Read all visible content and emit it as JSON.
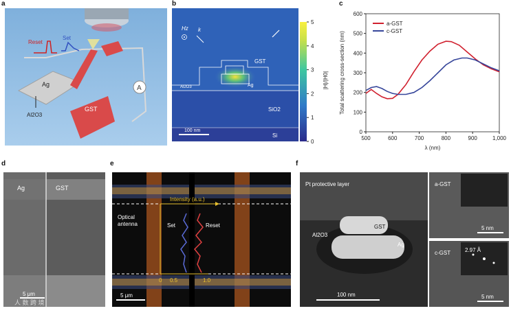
{
  "panels": {
    "a": "a",
    "b": "b",
    "c": "c",
    "d": "d",
    "e": "e",
    "f": "f"
  },
  "panel_a": {
    "reset": "Reset",
    "set": "Set",
    "ag": "Ag",
    "gst": "GST",
    "al2o3": "Al2O3",
    "meter": "A"
  },
  "panel_b": {
    "hz": "Hz",
    "k": "k",
    "gst": "GST",
    "ag": "Ag",
    "al2o3": "Al2O3",
    "sio2": "SiO2",
    "si": "Si",
    "scale": "100 nm",
    "colorbar_label": "|H|/|H0|",
    "colorbar_ticks": [
      "0",
      "1",
      "2",
      "3",
      "4",
      "5"
    ]
  },
  "panel_d": {
    "ag": "Ag",
    "gst": "GST",
    "scale": "5 μm",
    "watermark": "人 数 跨 境"
  },
  "panel_e": {
    "intensity": "Intensity (a.u.)",
    "optical": "Optical",
    "antenna": "antenna",
    "set": "Set",
    "reset": "Reset",
    "tick0": "0",
    "tick05": "0.5",
    "tick1": "1.0",
    "scale": "5 μm"
  },
  "panel_f": {
    "pt": "Pt protective layer",
    "gst": "GST",
    "al2o3": "Al2O3",
    "ag": "Ag",
    "scale": "100 nm",
    "agst": "a-GST",
    "cgst": "c-GST",
    "d": "2.97 Å",
    "scale_small1": "5 nm",
    "scale_small2": "5 nm"
  },
  "chart_data": {
    "type": "line",
    "title": "",
    "xlabel": "λ (nm)",
    "ylabel": "Total scattering cross-section (nm)",
    "xlim": [
      500,
      1000
    ],
    "ylim": [
      0,
      600
    ],
    "xticks": [
      "500",
      "600",
      "700",
      "800",
      "900",
      "1,000"
    ],
    "yticks": [
      "0",
      "100",
      "200",
      "300",
      "400",
      "500",
      "600"
    ],
    "series": [
      {
        "name": "a-GST",
        "color": "#d0202e",
        "x": [
          500,
          520,
          540,
          560,
          580,
          600,
          620,
          650,
          680,
          710,
          740,
          770,
          800,
          820,
          850,
          880,
          910,
          940,
          970,
          1000
        ],
        "y": [
          195,
          215,
          195,
          178,
          168,
          170,
          190,
          240,
          305,
          365,
          410,
          445,
          460,
          458,
          440,
          405,
          370,
          340,
          320,
          305
        ]
      },
      {
        "name": "c-GST",
        "color": "#35459a",
        "x": [
          500,
          520,
          540,
          560,
          580,
          600,
          620,
          650,
          680,
          710,
          740,
          770,
          800,
          830,
          860,
          880,
          910,
          940,
          970,
          1000
        ],
        "y": [
          210,
          225,
          230,
          220,
          205,
          195,
          190,
          190,
          200,
          225,
          260,
          300,
          340,
          365,
          375,
          375,
          365,
          345,
          325,
          310
        ]
      }
    ]
  }
}
